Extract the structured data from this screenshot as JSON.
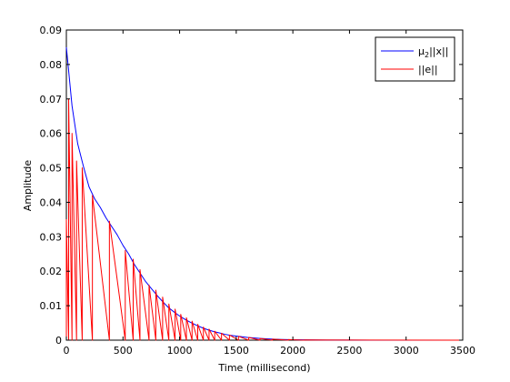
{
  "chart_data": {
    "type": "line",
    "xlabel": "Time (millisecond)",
    "ylabel": "Amplitude",
    "xlim": [
      0,
      3500
    ],
    "ylim": [
      0,
      0.09
    ],
    "xticks": [
      0,
      500,
      1000,
      1500,
      2000,
      2500,
      3000,
      3500
    ],
    "yticks": [
      0,
      0.01,
      0.02,
      0.03,
      0.04,
      0.05,
      0.06,
      0.07,
      0.08,
      0.09
    ],
    "xtick_labels": [
      "0",
      "500",
      "1000",
      "1500",
      "2000",
      "2500",
      "3000",
      "3500"
    ],
    "ytick_labels": [
      "0",
      "0.01",
      "0.02",
      "0.03",
      "0.04",
      "0.05",
      "0.06",
      "0.07",
      "0.08",
      "0.09"
    ],
    "grid": false,
    "legend": {
      "placement": "top-right",
      "entries": [
        {
          "label_main": "μ",
          "label_sub": "2",
          "label_rest": "||x||",
          "color": "#0000ff"
        },
        {
          "label_main": "||e||",
          "label_sub": "",
          "label_rest": "",
          "color": "#ff0000"
        }
      ]
    },
    "series": [
      {
        "color": "#0000ff",
        "x": [
          0,
          50,
          100,
          150,
          200,
          250,
          300,
          350,
          400,
          450,
          500,
          550,
          600,
          650,
          700,
          750,
          800,
          850,
          900,
          950,
          1000,
          1050,
          1100,
          1150,
          1200,
          1250,
          1300,
          1350,
          1400,
          1450,
          1500,
          1550,
          1600,
          1650,
          1700,
          1750,
          1800,
          1850,
          1900,
          1950,
          2000,
          2100,
          2200,
          2300,
          2400,
          2500,
          2700,
          3000,
          3500
        ],
        "y": [
          0.085,
          0.068,
          0.057,
          0.0505,
          0.0445,
          0.041,
          0.0385,
          0.0355,
          0.033,
          0.0305,
          0.0275,
          0.025,
          0.022,
          0.0195,
          0.017,
          0.015,
          0.013,
          0.0112,
          0.0095,
          0.0082,
          0.007,
          0.006,
          0.0051,
          0.0043,
          0.0036,
          0.003,
          0.0025,
          0.0021,
          0.0017,
          0.0014,
          0.0012,
          0.001,
          0.0008,
          0.00065,
          0.00052,
          0.00042,
          0.00034,
          0.00027,
          0.00021,
          0.00017,
          0.00013,
          9e-05,
          6e-05,
          4e-05,
          3e-05,
          2e-05,
          1e-05,
          5e-06,
          0.0
        ]
      },
      {
        "color": "#ff0000",
        "x": [
          0,
          0,
          20,
          20,
          50,
          50,
          90,
          90,
          140,
          140,
          230,
          230,
          380,
          380,
          520,
          520,
          590,
          590,
          650,
          650,
          730,
          730,
          790,
          790,
          850,
          850,
          905,
          905,
          960,
          960,
          1010,
          1010,
          1060,
          1060,
          1110,
          1110,
          1160,
          1160,
          1210,
          1210,
          1260,
          1260,
          1310,
          1310,
          1370,
          1370,
          1440,
          1440,
          1520,
          1520,
          1610,
          1610,
          1710,
          1710,
          1820,
          1820,
          1960,
          1960,
          2100,
          2100,
          3500
        ],
        "y": [
          0.0,
          0.035,
          0.0,
          0.07,
          0.0,
          0.06,
          0.0,
          0.052,
          0.0,
          0.05,
          0.0,
          0.042,
          0.0,
          0.0345,
          0.0,
          0.026,
          0.0,
          0.0235,
          0.0,
          0.0205,
          0.0,
          0.016,
          0.0,
          0.0145,
          0.0,
          0.0125,
          0.0,
          0.0105,
          0.0,
          0.009,
          0.0,
          0.0075,
          0.0,
          0.0065,
          0.0,
          0.0055,
          0.0,
          0.0046,
          0.0,
          0.0038,
          0.0,
          0.0032,
          0.0,
          0.0026,
          0.0,
          0.002,
          0.0,
          0.0015,
          0.0,
          0.0011,
          0.0,
          0.0008,
          0.0,
          0.0005,
          0.0,
          0.0003,
          0.0,
          0.00015,
          0.0,
          5e-05,
          0.0
        ]
      }
    ]
  }
}
